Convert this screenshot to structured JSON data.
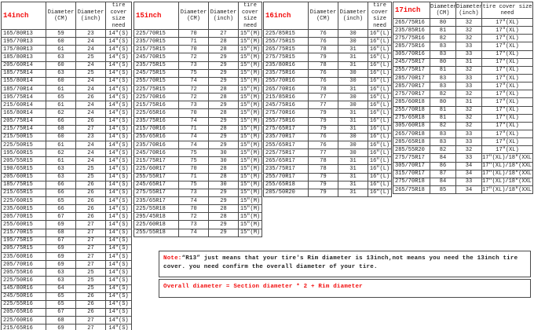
{
  "colors": {
    "accent_red": "#f20d0d",
    "border": "#4a4a4a",
    "text": "#1c1c1c",
    "background": "#ffffff"
  },
  "note": {
    "label": "Note:",
    "text": "“R13” just means that your tire's Rim diameter is 13inch,not means you need the 13inch tire cover. you need confirm the overall diameter of your tire.",
    "formula": "Overall diameter = Section diameter * 2 + Rim diameter"
  },
  "tables": [
    {
      "title": "14inch",
      "columns": [
        "Diameter (CM)",
        "Diameter (inch)",
        "tire cover size need"
      ],
      "rows": [
        [
          "165/80R13",
          "59",
          "23",
          "14″(S)"
        ],
        [
          "195/70R13",
          "60",
          "24",
          "14″(S)"
        ],
        [
          "175/80R13",
          "61",
          "24",
          "14″(S)"
        ],
        [
          "185/80R13",
          "63",
          "25",
          "14″(S)"
        ],
        [
          "205/60R14",
          "60",
          "24",
          "14″(S)"
        ],
        [
          "185/75R14",
          "63",
          "25",
          "14″(S)"
        ],
        [
          "155/80R14",
          "60",
          "24",
          "14″(S)"
        ],
        [
          "185/70R14",
          "61",
          "24",
          "14″(S)"
        ],
        [
          "195/75R14",
          "65",
          "26",
          "14″(S)"
        ],
        [
          "215/60R14",
          "61",
          "24",
          "14″(S)"
        ],
        [
          "165/80R14",
          "62",
          "24",
          "14″(S)"
        ],
        [
          "205/75R14",
          "66",
          "26",
          "14″(S)"
        ],
        [
          "215/75R14",
          "68",
          "27",
          "14″(S)"
        ],
        [
          "215/50R15",
          "60",
          "23",
          "14″(S)"
        ],
        [
          "225/50R15",
          "61",
          "24",
          "14″(S)"
        ],
        [
          "195/60R15",
          "62",
          "24",
          "14″(S)"
        ],
        [
          "205/55R15",
          "61",
          "24",
          "14″(S)"
        ],
        [
          "190/65R15",
          "63",
          "25",
          "14″(S)"
        ],
        [
          "205/60R15",
          "63",
          "25",
          "14″(S)"
        ],
        [
          "185/75R15",
          "66",
          "26",
          "14″(S)"
        ],
        [
          "215/65R15",
          "66",
          "26",
          "14″(S)"
        ],
        [
          "225/60R15",
          "65",
          "26",
          "14″(S)"
        ],
        [
          "235/60R15",
          "66",
          "26",
          "14″(S)"
        ],
        [
          "205/70R15",
          "67",
          "26",
          "14″(S)"
        ],
        [
          "255/60R15",
          "69",
          "27",
          "14″(S)"
        ],
        [
          "215/70R15",
          "68",
          "27",
          "14″(S)"
        ],
        [
          "195/75R15",
          "67",
          "27",
          "14″(S)"
        ],
        [
          "205/75R15",
          "69",
          "27",
          "14″(S)"
        ],
        [
          "235/60R16",
          "69",
          "27",
          "14″(S)"
        ],
        [
          "205/70R16",
          "69",
          "27",
          "14″(S)"
        ],
        [
          "205/55R16",
          "63",
          "25",
          "14″(S)"
        ],
        [
          "225/50R16",
          "63",
          "25",
          "14″(S)"
        ],
        [
          "145/80R16",
          "64",
          "25",
          "14″(S)"
        ],
        [
          "245/50R16",
          "65",
          "26",
          "14″(S)"
        ],
        [
          "225/55R16",
          "65",
          "26",
          "14″(S)"
        ],
        [
          "205/65R16",
          "67",
          "26",
          "14″(S)"
        ],
        [
          "225/60R16",
          "68",
          "27",
          "14″(S)"
        ],
        [
          "215/65R16",
          "69",
          "27",
          "14″(S)"
        ],
        [
          "225/55R17",
          "68",
          "27",
          "14″(S)"
        ]
      ]
    },
    {
      "title": "15inch",
      "columns": [
        "Diameter (CM)",
        "Diameter (inch)",
        "tire cover size need"
      ],
      "rows": [
        [
          "225/70R15",
          "70",
          "27",
          "15″(M)"
        ],
        [
          "235/70R15",
          "71",
          "28",
          "15″(M)"
        ],
        [
          "215/75R15",
          "70",
          "28",
          "15″(M)"
        ],
        [
          "245/70R15",
          "72",
          "29",
          "15″(M)"
        ],
        [
          "235/75R15",
          "73",
          "29",
          "15″(M)"
        ],
        [
          "245/75R15",
          "75",
          "29",
          "15″(M)"
        ],
        [
          "255/70R15",
          "74",
          "29",
          "15″(M)"
        ],
        [
          "225/75R15",
          "72",
          "28",
          "15″(M)"
        ],
        [
          "225/70R16",
          "72",
          "28",
          "15″(M)"
        ],
        [
          "215/75R16",
          "73",
          "29",
          "15″(M)"
        ],
        [
          "225/65R16",
          "70",
          "28",
          "15″(M)"
        ],
        [
          "235/75R16",
          "74",
          "29",
          "15″(M)"
        ],
        [
          "215/70R16",
          "71",
          "28",
          "15″(M)"
        ],
        [
          "255/65R16",
          "74",
          "29",
          "15″(M)"
        ],
        [
          "235/70R16",
          "74",
          "29",
          "15″(M)"
        ],
        [
          "245/70R16",
          "75",
          "30",
          "15″(M)"
        ],
        [
          "215/75R17",
          "75",
          "30",
          "15″(M)"
        ],
        [
          "225/60R17",
          "70",
          "28",
          "15″(M)"
        ],
        [
          "255/55R17",
          "71",
          "28",
          "15″(M)"
        ],
        [
          "245/65R17",
          "75",
          "30",
          "15″(M)"
        ],
        [
          "275/55R17",
          "73",
          "29",
          "15″(M)"
        ],
        [
          "235/65R17",
          "74",
          "29",
          "15″(M)"
        ],
        [
          "225/55R18",
          "70",
          "28",
          "15″(M)"
        ],
        [
          "295/45R18",
          "72",
          "28",
          "15″(M)"
        ],
        [
          "225/60R18",
          "73",
          "29",
          "15″(M)"
        ],
        [
          "255/55R18",
          "74",
          "29",
          "15″(M)"
        ]
      ]
    },
    {
      "title": "16inch",
      "columns": [
        "Diameter (CM)",
        "Diameter (inch)",
        "tire cover size need"
      ],
      "rows": [
        [
          "225/85R15",
          "76",
          "30",
          "16″(L)"
        ],
        [
          "255/75R15",
          "76",
          "30",
          "16″(L)"
        ],
        [
          "265/75R15",
          "78",
          "31",
          "16″(L)"
        ],
        [
          "275/75R15",
          "79",
          "31",
          "16″(L)"
        ],
        [
          "235/80R16",
          "78",
          "31",
          "16″(L)"
        ],
        [
          "235/75R16",
          "76",
          "30",
          "16″(L)"
        ],
        [
          "255/70R16",
          "76",
          "30",
          "16″(L)"
        ],
        [
          "265/70R16",
          "78",
          "31",
          "16″(L)"
        ],
        [
          "215/85R16",
          "77",
          "30",
          "16″(L)"
        ],
        [
          "245/75R16",
          "77",
          "30",
          "16″(L)"
        ],
        [
          "275/70R16",
          "79",
          "31",
          "16″(L)"
        ],
        [
          "255/75R16",
          "79",
          "31",
          "16″(L)"
        ],
        [
          "275/65R17",
          "79",
          "31",
          "16″(L)"
        ],
        [
          "235/70R17",
          "76",
          "30",
          "16″(L)"
        ],
        [
          "255/65R17",
          "76",
          "30",
          "16″(L)"
        ],
        [
          "225/75R17",
          "77",
          "30",
          "16″(L)"
        ],
        [
          "265/65R17",
          "78",
          "31",
          "16″(L)"
        ],
        [
          "235/75R17",
          "78",
          "31",
          "16″(L)"
        ],
        [
          "255/70R17",
          "79",
          "31",
          "16″(L)"
        ],
        [
          "255/65R18",
          "79",
          "31",
          "16″(L)"
        ],
        [
          "285/50R20",
          "79",
          "31",
          "16″(L)"
        ]
      ]
    },
    {
      "title": "17inch",
      "columns": [
        "Diameter (CM)",
        "Diameter (inch)",
        "tire cover size need"
      ],
      "rows": [
        [
          "265/75R16",
          "80",
          "32",
          "17″(XL)"
        ],
        [
          "235/85R16",
          "81",
          "32",
          "17″(XL)"
        ],
        [
          "275/75R16",
          "82",
          "32",
          "17″(XL)"
        ],
        [
          "285/75R16",
          "83",
          "33",
          "17″(XL)"
        ],
        [
          "305/70R16",
          "83",
          "33",
          "17″(XL)"
        ],
        [
          "245/75R17",
          "80",
          "31",
          "17″(XL)"
        ],
        [
          "255/75R17",
          "81",
          "32",
          "17″(XL)"
        ],
        [
          "285/70R17",
          "83",
          "33",
          "17″(XL)"
        ],
        [
          "285/70R17",
          "83",
          "33",
          "17″(XL)"
        ],
        [
          "275/70R17",
          "82",
          "32",
          "17″(XL)"
        ],
        [
          "285/60R18",
          "80",
          "31",
          "17″(XL)"
        ],
        [
          "255/70R18",
          "81",
          "32",
          "17″(XL)"
        ],
        [
          "275/65R18",
          "81",
          "32",
          "17″(XL)"
        ],
        [
          "305/60R18",
          "82",
          "32",
          "17″(XL)"
        ],
        [
          "265/70R18",
          "83",
          "33",
          "17″(XL)"
        ],
        [
          "285/65R18",
          "83",
          "33",
          "17″(XL)"
        ],
        [
          "285/55R20",
          "82",
          "32",
          "17″(XL)"
        ],
        [
          "275/75R17",
          "84",
          "33",
          "17″(XL)/18″(XXL)"
        ],
        [
          "305/70R17",
          "86",
          "34",
          "17″(XL)/18″(XXL)"
        ],
        [
          "315/70R17",
          "87",
          "34",
          "17″(XL)/18″(XXL)"
        ],
        [
          "275/70R18",
          "84",
          "33",
          "17″(XL)/18″(XXL)"
        ],
        [
          "265/75R18",
          "85",
          "34",
          "17″(XL)/18″(XXL)"
        ]
      ]
    }
  ]
}
